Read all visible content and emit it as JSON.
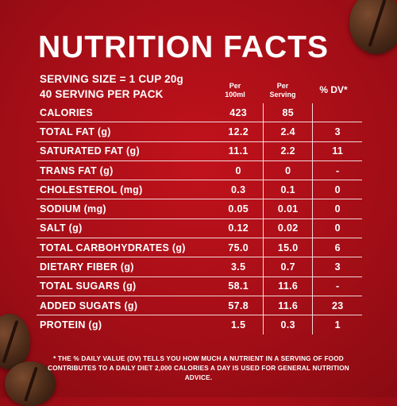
{
  "title": "NUTRITION FACTS",
  "serving_size": "SERVING SIZE = 1 CUP 20g",
  "servings_per_pack": "40 SERVING PER PACK",
  "columns": {
    "per_100ml": [
      "Per",
      "100ml"
    ],
    "per_serving": [
      "Per",
      "Serving"
    ],
    "dv": "% DV*"
  },
  "rows": [
    {
      "label": "CALORIES",
      "per_100ml": "423",
      "per_serving": "85",
      "dv": ""
    },
    {
      "label": "TOTAL FAT (g)",
      "per_100ml": "12.2",
      "per_serving": "2.4",
      "dv": "3"
    },
    {
      "label": "SATURATED FAT (g)",
      "per_100ml": "11.1",
      "per_serving": "2.2",
      "dv": "11"
    },
    {
      "label": "TRANS FAT (g)",
      "per_100ml": "0",
      "per_serving": "0",
      "dv": "-"
    },
    {
      "label": "CHOLESTEROL (mg)",
      "per_100ml": "0.3",
      "per_serving": "0.1",
      "dv": "0"
    },
    {
      "label": "SODIUM (mg)",
      "per_100ml": "0.05",
      "per_serving": "0.01",
      "dv": "0"
    },
    {
      "label": "SALT (g)",
      "per_100ml": "0.12",
      "per_serving": "0.02",
      "dv": "0"
    },
    {
      "label": "TOTAL CARBOHYDRATES (g)",
      "per_100ml": "75.0",
      "per_serving": "15.0",
      "dv": "6"
    },
    {
      "label": "DIETARY FIBER (g)",
      "per_100ml": "3.5",
      "per_serving": "0.7",
      "dv": "3"
    },
    {
      "label": "TOTAL SUGARS (g)",
      "per_100ml": "58.1",
      "per_serving": "11.6",
      "dv": "-"
    },
    {
      "label": "ADDED SUGATS (g)",
      "per_100ml": "57.8",
      "per_serving": "11.6",
      "dv": "23"
    },
    {
      "label": "PROTEIN (g)",
      "per_100ml": "1.5",
      "per_serving": "0.3",
      "dv": "1"
    }
  ],
  "footnote": "* THE % DAILY VALUE (DV) TELLS YOU HOW MUCH A NUTRIENT IN A SERVING OF FOOD CONTRIBUTES TO A DAILY DIET 2,000 CALORIES A DAY IS USED FOR GENERAL NUTRITION ADVICE.",
  "colors": {
    "background": "#b0101a",
    "text": "#ffffff",
    "bean": "#4a2a18"
  }
}
